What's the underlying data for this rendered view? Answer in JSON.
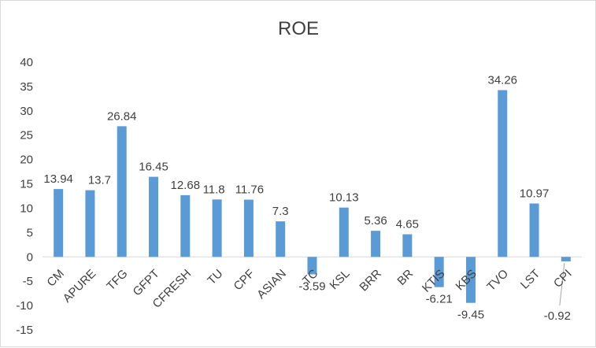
{
  "chart_data": {
    "type": "bar",
    "title": "ROE",
    "xlabel": "",
    "ylabel": "",
    "categories": [
      "CM",
      "APURE",
      "TFG",
      "GFPT",
      "CFRESH",
      "TU",
      "CPF",
      "ASIAN",
      "TC",
      "KSL",
      "BRR",
      "BR",
      "KTIS",
      "KBS",
      "TVO",
      "LST",
      "CPI"
    ],
    "values": [
      13.94,
      13.7,
      26.84,
      16.45,
      12.68,
      11.8,
      11.76,
      7.3,
      -3.59,
      10.13,
      5.36,
      4.65,
      -6.21,
      -9.45,
      34.26,
      10.97,
      -0.92
    ],
    "value_labels": [
      "13.94",
      "13.7",
      "26.84",
      "16.45",
      "12.68",
      "11.8",
      "11.76",
      "7.3",
      "-3.59",
      "10.13",
      "5.36",
      "4.65",
      "-6.21",
      "-9.45",
      "34.26",
      "10.97",
      "-0.92"
    ],
    "ylim": [
      -15,
      40
    ],
    "yticks": [
      "-15",
      "-10",
      "-5",
      "0",
      "5",
      "10",
      "15",
      "20",
      "25",
      "30",
      "35",
      "40"
    ],
    "grid": false,
    "legend": "none",
    "colors": {
      "bar": "#5b9bd5",
      "text": "#404040",
      "axis": "#d9d9d9",
      "leader": "#a6a6a6"
    }
  }
}
